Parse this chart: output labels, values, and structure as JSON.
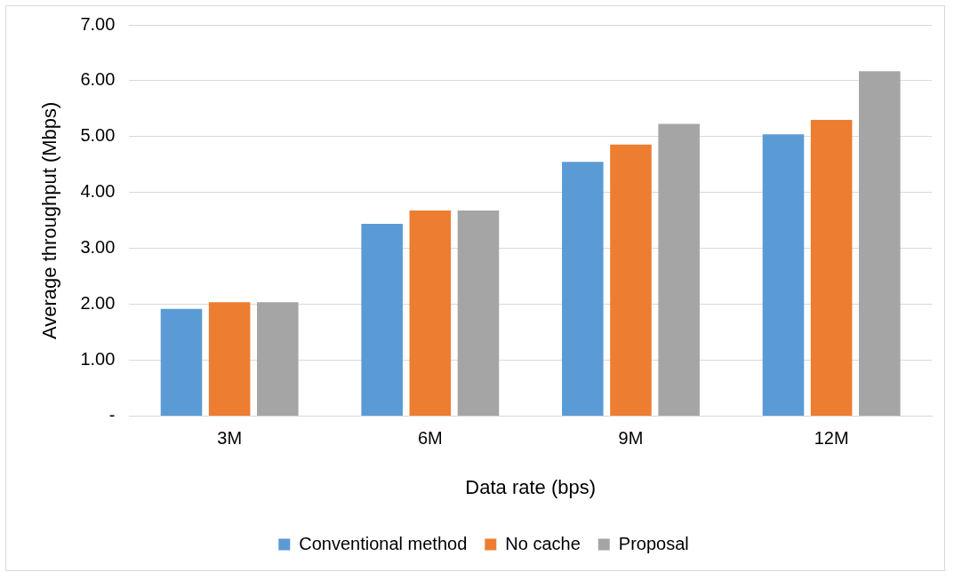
{
  "chart_data": {
    "type": "bar",
    "xlabel": "Data rate (bps)",
    "ylabel": "Average throughput (Mbps)",
    "categories": [
      "3M",
      "6M",
      "9M",
      "12M"
    ],
    "series": [
      {
        "name": "Conventional method",
        "color": "#5b9bd5",
        "values": [
          1.92,
          3.44,
          4.55,
          5.04
        ]
      },
      {
        "name": "No cache",
        "color": "#ed7d31",
        "values": [
          2.04,
          3.68,
          4.86,
          5.3
        ]
      },
      {
        "name": "Proposal",
        "color": "#a5a5a5",
        "values": [
          2.04,
          3.68,
          5.23,
          6.17
        ]
      }
    ],
    "ylim": [
      0,
      7
    ],
    "yticks": [
      {
        "value": 0,
        "label": "-"
      },
      {
        "value": 1,
        "label": "1.00"
      },
      {
        "value": 2,
        "label": "2.00"
      },
      {
        "value": 3,
        "label": "3.00"
      },
      {
        "value": 4,
        "label": "4.00"
      },
      {
        "value": 5,
        "label": "5.00"
      },
      {
        "value": 6,
        "label": "6.00"
      },
      {
        "value": 7,
        "label": "7.00"
      }
    ],
    "grid": "y",
    "legend": "bottom"
  }
}
